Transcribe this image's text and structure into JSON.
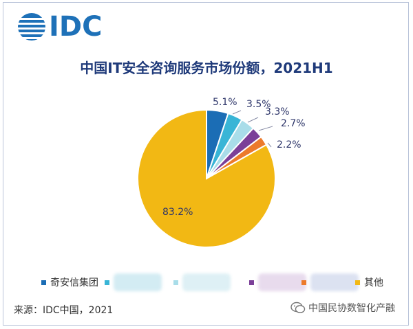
{
  "logo": {
    "text": "IDC",
    "icon": "idc-globe-logo",
    "color": "#1e71b8"
  },
  "chart_data": {
    "type": "pie",
    "title": "中国IT安全咨询服务市场份额，2021H1",
    "start_angle_deg": 0,
    "direction": "clockwise",
    "slices": [
      {
        "label": "奇安信集团",
        "value": 5.1,
        "display": "5.1%",
        "color": "#1b6db5"
      },
      {
        "label": "",
        "value": 3.5,
        "display": "3.5%",
        "color": "#39b5d6"
      },
      {
        "label": "",
        "value": 3.3,
        "display": "3.3%",
        "color": "#a9dde9"
      },
      {
        "label": "",
        "value": 2.7,
        "display": "2.7%",
        "color": "#7b3f98"
      },
      {
        "label": "",
        "value": 2.2,
        "display": "2.2%",
        "color": "#ec7a2b"
      },
      {
        "label": "其他",
        "value": 83.2,
        "display": "83.2%",
        "color": "#f2b814"
      }
    ],
    "label_color": "#2d3569",
    "legend": {
      "position": "bottom",
      "items": [
        {
          "label": "奇安信集团",
          "color": "#1b6db5",
          "blurred": false
        },
        {
          "label": "",
          "color": "#39b5d6",
          "blurred": true,
          "blur_color": "#cfeaf2"
        },
        {
          "label": "",
          "color": "#a9dde9",
          "blurred": true,
          "blur_color": "#dbeff4"
        },
        {
          "label": "",
          "color": "#7b3f98",
          "blurred": true,
          "blur_color": "#e6d8ec"
        },
        {
          "label": "",
          "color": "#ec7a2b",
          "blurred": true,
          "blur_color": "#d9dff0"
        },
        {
          "label": "其他",
          "color": "#f2b814",
          "blurred": false
        }
      ]
    }
  },
  "footer": {
    "source": "来源：IDC中国，2021",
    "watermark": "中国民协数智化产融",
    "watermark_icon": "wechat-search-icon"
  }
}
